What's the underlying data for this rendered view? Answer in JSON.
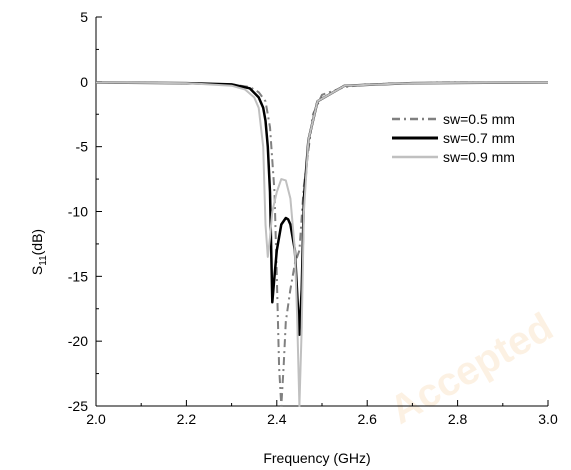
{
  "chart_data": {
    "type": "line",
    "title": "",
    "xlabel": "Frequency (GHz)",
    "ylabel_main": "S",
    "ylabel_sub": "11",
    "ylabel_rest": "(dB)",
    "xlim": [
      2.0,
      3.0
    ],
    "ylim": [
      -25,
      5
    ],
    "x_ticks": [
      "2.0",
      "2.2",
      "2.4",
      "2.6",
      "2.8",
      "3.0"
    ],
    "y_ticks": [
      "5",
      "0",
      "-5",
      "-10",
      "-15",
      "-20",
      "-25"
    ],
    "grid": false,
    "legend_position": "right",
    "series": [
      {
        "name": "sw=0.5 mm",
        "color": "#808080",
        "dash": "dashdot",
        "width": 2,
        "x": [
          2.0,
          2.2,
          2.3,
          2.34,
          2.36,
          2.375,
          2.385,
          2.395,
          2.4,
          2.405,
          2.41,
          2.415,
          2.42,
          2.43,
          2.44,
          2.45,
          2.46,
          2.48,
          2.5,
          2.55,
          2.6,
          2.7,
          2.8,
          3.0
        ],
        "y": [
          -0.05,
          -0.1,
          -0.2,
          -0.4,
          -0.8,
          -1.5,
          -3.5,
          -8.5,
          -15,
          -22,
          -25,
          -22,
          -18.5,
          -16,
          -14,
          -13,
          -8,
          -2.5,
          -1.0,
          -0.4,
          -0.2,
          -0.1,
          -0.05,
          -0.05
        ]
      },
      {
        "name": "sw=0.7 mm",
        "color": "#000000",
        "dash": "solid",
        "width": 2.5,
        "x": [
          2.0,
          2.2,
          2.3,
          2.34,
          2.36,
          2.37,
          2.375,
          2.38,
          2.385,
          2.39,
          2.395,
          2.4,
          2.41,
          2.42,
          2.425,
          2.43,
          2.44,
          2.45,
          2.455,
          2.46,
          2.47,
          2.49,
          2.55,
          2.7,
          3.0
        ],
        "y": [
          -0.05,
          -0.1,
          -0.2,
          -0.5,
          -1.2,
          -2.0,
          -3.0,
          -5.0,
          -8.5,
          -17,
          -15,
          -13,
          -11,
          -10.5,
          -10.6,
          -11,
          -13,
          -19.5,
          -16,
          -9,
          -4.5,
          -1.5,
          -0.3,
          -0.1,
          -0.05
        ]
      },
      {
        "name": "sw=0.9 mm",
        "color": "#c0c0c0",
        "dash": "solid",
        "width": 2,
        "x": [
          2.0,
          2.2,
          2.3,
          2.33,
          2.35,
          2.36,
          2.37,
          2.375,
          2.38,
          2.385,
          2.39,
          2.4,
          2.41,
          2.42,
          2.43,
          2.44,
          2.445,
          2.45,
          2.455,
          2.46,
          2.47,
          2.49,
          2.55,
          2.7,
          3.0
        ],
        "y": [
          -0.05,
          -0.1,
          -0.3,
          -0.6,
          -1.2,
          -2.0,
          -5.0,
          -11,
          -13.5,
          -12,
          -10,
          -8.5,
          -7.5,
          -7.6,
          -9,
          -13,
          -18,
          -25,
          -19,
          -10,
          -4.5,
          -1.5,
          -0.3,
          -0.1,
          -0.05
        ]
      }
    ]
  },
  "watermark": "Accepted"
}
